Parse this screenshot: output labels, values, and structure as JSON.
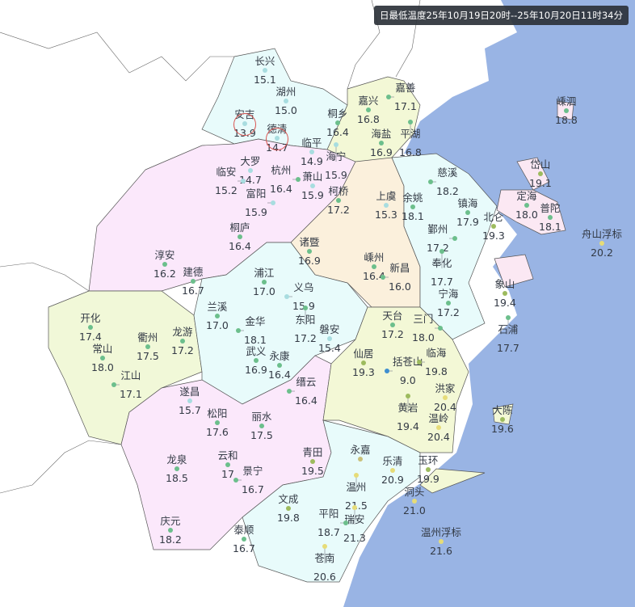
{
  "title": "日最低温度25年10月19日20时--25年10月20日11时34分",
  "colors": {
    "sea": "#99b4e4",
    "huzhou": "#e8fbfb",
    "jiaxing": "#f3f8d6",
    "hangzhou": "#fbe8fb",
    "shaoxing": "#fbf0dc",
    "ningbo": "#e8fbfb",
    "zhoushan": "#fbe8f3",
    "quzhou": "#f1f8d8",
    "jinhua": "#e8fbfb",
    "lishui": "#fbe8fb",
    "taizhou": "#f3f8d6",
    "wenzhou": "#e8fbfb",
    "highlight": "#d9534f"
  },
  "color_scale": [
    [
      10,
      "#3f8fd0"
    ],
    [
      16,
      "#a8dde0"
    ],
    [
      19,
      "#6cbf8c"
    ],
    [
      20,
      "#9dbb5e"
    ],
    [
      99,
      "#e6dc78"
    ]
  ],
  "highlighted": [
    "安吉",
    "德清"
  ],
  "stations": [
    {
      "name": "长兴",
      "value": "15.1"
    },
    {
      "name": "湖州",
      "value": "15.0"
    },
    {
      "name": "安吉",
      "value": "13.9"
    },
    {
      "name": "德清",
      "value": "14.7"
    },
    {
      "name": "临平",
      "value": "14.9"
    },
    {
      "name": "桐乡",
      "value": "16.4"
    },
    {
      "name": "海宁",
      "value": "15.9"
    },
    {
      "name": "嘉兴",
      "value": "16.8"
    },
    {
      "name": "嘉善",
      "value": "17.1"
    },
    {
      "name": "平湖",
      "value": "16.8"
    },
    {
      "name": "海盐",
      "value": "16.9"
    },
    {
      "name": "大罗",
      "value": "14.7"
    },
    {
      "name": "临安",
      "value": "15.2"
    },
    {
      "name": "杭州",
      "value": "16.4"
    },
    {
      "name": "萧山",
      "value": "15.9"
    },
    {
      "name": "富阳",
      "value": "15.9"
    },
    {
      "name": "柯桥",
      "value": "17.2"
    },
    {
      "name": "上虞",
      "value": "15.3"
    },
    {
      "name": "余姚",
      "value": "18.1"
    },
    {
      "name": "慈溪",
      "value": "18.2"
    },
    {
      "name": "镇海",
      "value": "17.9"
    },
    {
      "name": "北仑",
      "value": "19.3"
    },
    {
      "name": "鄞州",
      "value": "17.2"
    },
    {
      "name": "奉化",
      "value": "17.7"
    },
    {
      "name": "岱山",
      "value": "19.1"
    },
    {
      "name": "定海",
      "value": "18.0"
    },
    {
      "name": "普陀",
      "value": "18.1"
    },
    {
      "name": "舟山浮标",
      "value": "20.2"
    },
    {
      "name": "嵊泗",
      "value": "18.8"
    },
    {
      "name": "嵊州",
      "value": "16.4"
    },
    {
      "name": "新昌",
      "value": "16.0"
    },
    {
      "name": "诸暨",
      "value": "16.9"
    },
    {
      "name": "桐庐",
      "value": "16.4"
    },
    {
      "name": "淳安",
      "value": "16.2"
    },
    {
      "name": "建德",
      "value": "16.7"
    },
    {
      "name": "浦江",
      "value": "17.0"
    },
    {
      "name": "义乌",
      "value": "15.9"
    },
    {
      "name": "东阳",
      "value": "17.2"
    },
    {
      "name": "兰溪",
      "value": "17.0"
    },
    {
      "name": "金华",
      "value": "18.1"
    },
    {
      "name": "开化",
      "value": "17.4"
    },
    {
      "name": "衢州",
      "value": "17.5"
    },
    {
      "name": "龙游",
      "value": "17.2"
    },
    {
      "name": "常山",
      "value": "18.0"
    },
    {
      "name": "江山",
      "value": "17.1"
    },
    {
      "name": "武义",
      "value": "16.9"
    },
    {
      "name": "永康",
      "value": "16.4"
    },
    {
      "name": "缙云",
      "value": "16.4"
    },
    {
      "name": "磐安",
      "value": "15.4"
    },
    {
      "name": "象山",
      "value": "19.4"
    },
    {
      "name": "石浦",
      "value": "17.7"
    },
    {
      "name": "宁海",
      "value": "17.2"
    },
    {
      "name": "三门",
      "value": "18.0"
    },
    {
      "name": "天台",
      "value": "17.2"
    },
    {
      "name": "仙居",
      "value": "19.3"
    },
    {
      "name": "括苍山",
      "value": "9.0"
    },
    {
      "name": "临海",
      "value": "19.8"
    },
    {
      "name": "黄岩",
      "value": "19.4"
    },
    {
      "name": "洪家",
      "value": "20.4"
    },
    {
      "name": "温岭",
      "value": "20.4"
    },
    {
      "name": "大陈",
      "value": "19.6"
    },
    {
      "name": "遂昌",
      "value": "15.7"
    },
    {
      "name": "松阳",
      "value": "17.6"
    },
    {
      "name": "丽水",
      "value": "17.5"
    },
    {
      "name": "龙泉",
      "value": "18.5"
    },
    {
      "name": "云和",
      "value": "17"
    },
    {
      "name": "景宁",
      "value": "16.7"
    },
    {
      "name": "青田",
      "value": "19.5"
    },
    {
      "name": "永嘉",
      "value": ""
    },
    {
      "name": "温州",
      "value": "21.5"
    },
    {
      "name": "乐清",
      "value": "20.9"
    },
    {
      "name": "玉环",
      "value": "19.9"
    },
    {
      "name": "洞头",
      "value": "21.0"
    },
    {
      "name": "瑞安",
      "value": "21.3"
    },
    {
      "name": "平阳",
      "value": "18.7"
    },
    {
      "name": "文成",
      "value": "19.8"
    },
    {
      "name": "泰顺",
      "value": "16.7"
    },
    {
      "name": "苍南",
      "value": "20.6"
    },
    {
      "name": "庆元",
      "value": "18.2"
    },
    {
      "name": "温州浮标",
      "value": "21.6"
    }
  ]
}
